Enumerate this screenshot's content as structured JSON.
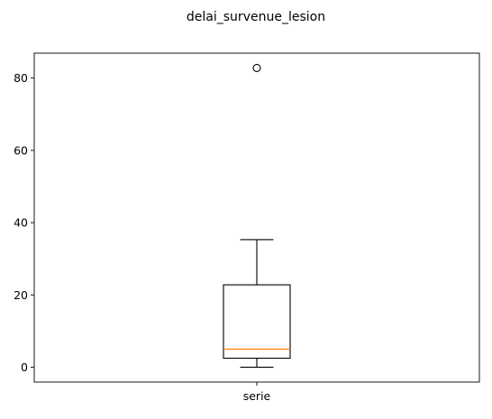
{
  "chart_data": {
    "type": "box",
    "title": "delai_survenue_lesion",
    "xlabel": "",
    "ylabel": "",
    "categories": [
      "serie"
    ],
    "series": [
      {
        "whisker_low": 0,
        "q1": 2.5,
        "median": 5,
        "q3": 22.8,
        "whisker_high": 35.3,
        "outliers": [
          82.8
        ]
      }
    ],
    "ylim": [
      -4.1,
      86.9
    ],
    "yticks": [
      0,
      20,
      40,
      60,
      80
    ],
    "grid": false,
    "colors": {
      "box": "#000000",
      "median": "#ff7f0e",
      "outlier_stroke": "#000000"
    }
  }
}
